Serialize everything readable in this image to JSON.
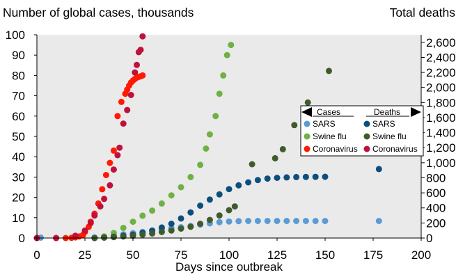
{
  "chart_data": {
    "type": "scatter",
    "title": "",
    "left_axis_title": "Number of global cases, thousands",
    "right_axis_title": "Total deaths",
    "xlabel": "Days since outbreak",
    "xlim": [
      0,
      200
    ],
    "ylim_left": [
      0,
      100
    ],
    "ylim_right": [
      0,
      2700
    ],
    "x_ticks": [
      0,
      25,
      50,
      75,
      100,
      125,
      150,
      175,
      200
    ],
    "x_tick_labels": [
      "0",
      "25",
      "50",
      "75",
      "100",
      "125",
      "150",
      "175",
      "200"
    ],
    "y_left_ticks": [
      0,
      10,
      20,
      30,
      40,
      50,
      60,
      70,
      80,
      90,
      100
    ],
    "y_left_tick_labels": [
      "0",
      "10",
      "20",
      "30",
      "40",
      "50",
      "60",
      "70",
      "80",
      "90",
      "100"
    ],
    "y_right_ticks": [
      0,
      200,
      400,
      600,
      800,
      1000,
      1200,
      1400,
      1600,
      1800,
      2000,
      2200,
      2400,
      2600
    ],
    "y_right_tick_labels": [
      "0",
      "200",
      "400",
      "600",
      "800",
      "1,000",
      "1,200",
      "1,400",
      "1,600",
      "1,800",
      "2,000",
      "2,200",
      "2,400",
      "2,600"
    ],
    "grid": false,
    "legend": {
      "placement": "right",
      "cases_header": "Cases",
      "deaths_header": "Deaths",
      "cases_items": [
        "SARS",
        "Swine flu",
        "Coronavirus"
      ],
      "deaths_items": [
        "SARS",
        "Swine flu",
        "Coronavirus"
      ]
    },
    "colors": {
      "plot_background": "#eaeaea",
      "sars_cases": "#5b9bd5",
      "sars_deaths": "#0b4f7e",
      "swine_cases": "#70b144",
      "swine_deaths": "#3f5b2b",
      "corona_cases": "#ff1a00",
      "corona_deaths": "#c0103c"
    },
    "series": [
      {
        "name": "SARS",
        "group": "Cases",
        "axis": "left",
        "color": "#5b9bd5",
        "x": [
          0,
          2,
          30,
          35,
          40,
          45,
          50,
          55,
          60,
          65,
          70,
          75,
          80,
          85,
          90,
          95,
          100,
          105,
          110,
          115,
          120,
          125,
          130,
          135,
          140,
          145,
          150,
          178
        ],
        "y": [
          0,
          0.2,
          0.3,
          0.7,
          1.2,
          1.8,
          2.4,
          3.0,
          3.6,
          4.2,
          4.8,
          5.3,
          5.9,
          6.6,
          7.2,
          7.8,
          8.1,
          8.3,
          8.4,
          8.4,
          8.4,
          8.4,
          8.4,
          8.4,
          8.4,
          8.4,
          8.4,
          8.4
        ]
      },
      {
        "name": "Swine flu",
        "group": "Cases",
        "axis": "left",
        "color": "#70b144",
        "x": [
          30,
          35,
          40,
          45,
          50,
          55,
          60,
          65,
          70,
          75,
          80,
          85,
          88,
          90,
          93,
          95,
          97,
          99,
          101
        ],
        "y": [
          0,
          0.8,
          2.5,
          5,
          8,
          11,
          13.5,
          17,
          21,
          25,
          30,
          36,
          44,
          51,
          60,
          71,
          80,
          90,
          95
        ]
      },
      {
        "name": "Coronavirus",
        "group": "Cases",
        "axis": "left",
        "color": "#ff1a00",
        "x": [
          0,
          10,
          15,
          18,
          20,
          22,
          24,
          25,
          27,
          28,
          30,
          32,
          34,
          36,
          38,
          40,
          42,
          44,
          46,
          47,
          48,
          49,
          50,
          51,
          52,
          53,
          54,
          55
        ],
        "y": [
          0,
          0,
          0,
          0.1,
          0.3,
          0.8,
          1.5,
          3.0,
          5.5,
          8.0,
          12.0,
          17.0,
          24.0,
          31.0,
          37.0,
          43.0,
          60.0,
          67.0,
          71.0,
          73.0,
          75.0,
          76.5,
          77.5,
          78.3,
          78.9,
          79.3,
          79.6,
          80.0
        ]
      },
      {
        "name": "SARS",
        "group": "Deaths",
        "axis": "right",
        "color": "#0b4f7e",
        "x": [
          30,
          35,
          40,
          45,
          50,
          55,
          60,
          65,
          70,
          75,
          80,
          85,
          90,
          95,
          100,
          105,
          110,
          115,
          120,
          125,
          130,
          135,
          140,
          145,
          150,
          178
        ],
        "y": [
          0,
          8,
          18,
          30,
          45,
          70,
          100,
          140,
          190,
          260,
          340,
          430,
          510,
          580,
          650,
          700,
          740,
          770,
          790,
          800,
          805,
          810,
          812,
          813,
          814,
          916
        ]
      },
      {
        "name": "Swine flu",
        "group": "Deaths",
        "axis": "right",
        "color": "#3f5b2b",
        "x": [
          30,
          35,
          40,
          45,
          50,
          55,
          60,
          65,
          70,
          75,
          80,
          85,
          90,
          95,
          100,
          103,
          112,
          124,
          128,
          134,
          141,
          152
        ],
        "y": [
          0,
          5,
          12,
          20,
          30,
          45,
          60,
          80,
          100,
          125,
          150,
          190,
          240,
          300,
          370,
          420,
          980,
          1060,
          1180,
          1500,
          1800,
          2220
        ]
      },
      {
        "name": "Coronavirus",
        "group": "Deaths",
        "axis": "right",
        "color": "#c0103c",
        "x": [
          0,
          10,
          20,
          25,
          28,
          30,
          33,
          35,
          38,
          40,
          42,
          43,
          45,
          47,
          49,
          51,
          52,
          53,
          54,
          55
        ],
        "y": [
          0,
          0,
          30,
          100,
          200,
          300,
          420,
          520,
          700,
          910,
          1100,
          1200,
          1520,
          1700,
          1900,
          2200,
          2300,
          2470,
          2500,
          2680
        ]
      }
    ]
  }
}
